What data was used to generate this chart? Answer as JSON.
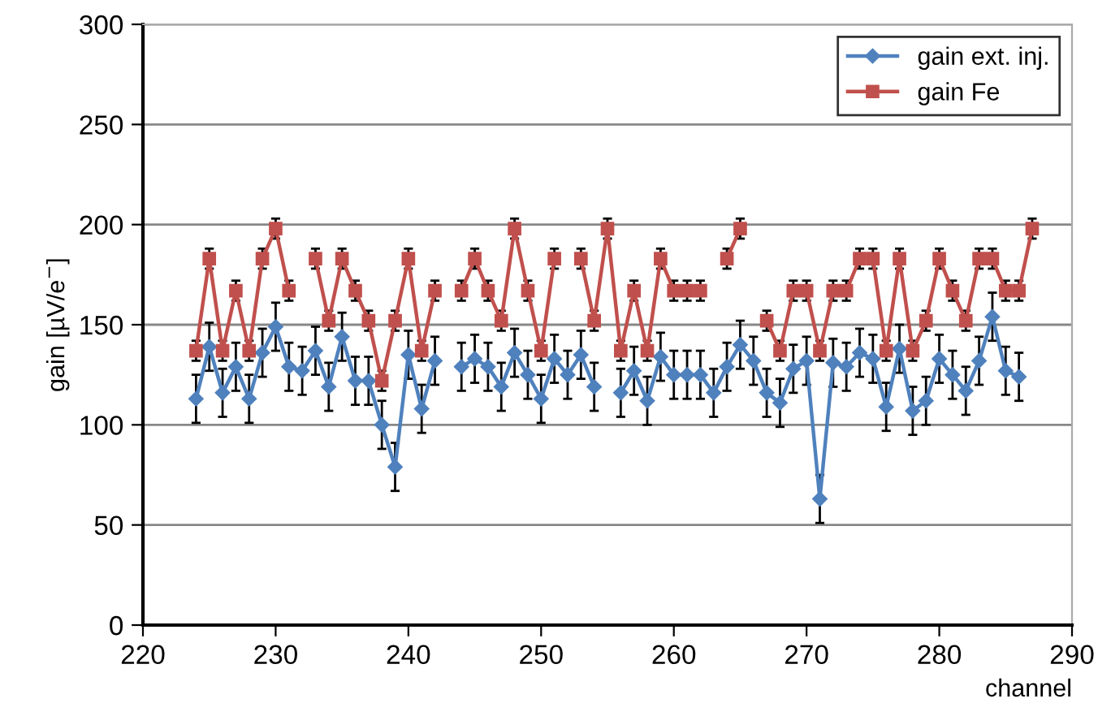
{
  "chart_data": {
    "type": "line",
    "xlabel": "channel",
    "ylabel": "gain [µV/e$^{−}$]",
    "xlim": [
      220,
      290
    ],
    "xticks": [
      220,
      230,
      240,
      250,
      260,
      270,
      280,
      290
    ],
    "ylim": [
      0,
      300
    ],
    "yticks": [
      0,
      50,
      100,
      150,
      200,
      250,
      300
    ],
    "grid": "y",
    "legend": "top right",
    "line_style": "solid",
    "x": [
      224,
      225,
      226,
      227,
      228,
      229,
      230,
      231,
      232,
      233,
      234,
      235,
      236,
      237,
      238,
      239,
      240,
      241,
      242,
      243,
      244,
      245,
      246,
      247,
      248,
      249,
      250,
      251,
      252,
      253,
      254,
      255,
      256,
      257,
      258,
      259,
      260,
      261,
      262,
      263,
      264,
      265,
      266,
      267,
      268,
      269,
      270,
      271,
      272,
      273,
      274,
      275,
      276,
      277,
      278,
      279,
      280,
      281,
      282,
      283,
      284,
      285,
      286,
      287
    ],
    "series": [
      {
        "name": "gain ext. inj.",
        "color": "#4f81bd",
        "marker": "diamond",
        "values": [
          113,
          139,
          116,
          129,
          113,
          136,
          149,
          129,
          127,
          137,
          119,
          144,
          122,
          122,
          100,
          79,
          135,
          108,
          132,
          null,
          129,
          133,
          129,
          119,
          136,
          125,
          113,
          133,
          125,
          135,
          119,
          null,
          116,
          127,
          112,
          134,
          125,
          125,
          125,
          116,
          129,
          140,
          132,
          116,
          111,
          128,
          132,
          63,
          131,
          129,
          136,
          133,
          109,
          138,
          107,
          112,
          133,
          125,
          117,
          132,
          154,
          127,
          124,
          null
        ],
        "errors": [
          12,
          12,
          12,
          12,
          12,
          12,
          12,
          12,
          12,
          12,
          12,
          12,
          12,
          12,
          12,
          12,
          12,
          12,
          12,
          null,
          12,
          12,
          12,
          12,
          12,
          12,
          12,
          12,
          12,
          12,
          12,
          null,
          12,
          12,
          12,
          12,
          12,
          12,
          12,
          12,
          12,
          12,
          12,
          12,
          12,
          12,
          12,
          12,
          12,
          12,
          12,
          12,
          12,
          12,
          12,
          12,
          12,
          12,
          12,
          12,
          12,
          12,
          12,
          null
        ]
      },
      {
        "name": "gain Fe",
        "color": "#c0504d",
        "marker": "square",
        "values": [
          137,
          183,
          137,
          167,
          137,
          183,
          198,
          167,
          null,
          183,
          152,
          183,
          167,
          152,
          122,
          152,
          183,
          137,
          167,
          null,
          167,
          183,
          167,
          152,
          198,
          167,
          137,
          183,
          null,
          183,
          152,
          198,
          137,
          167,
          137,
          183,
          167,
          167,
          167,
          null,
          183,
          198,
          null,
          152,
          137,
          167,
          167,
          137,
          167,
          167,
          183,
          183,
          137,
          183,
          137,
          152,
          183,
          167,
          152,
          183,
          183,
          167,
          167,
          198
        ],
        "errors": [
          5,
          5,
          5,
          5,
          5,
          5,
          5,
          5,
          null,
          5,
          5,
          5,
          5,
          5,
          5,
          5,
          5,
          5,
          5,
          null,
          5,
          5,
          5,
          5,
          5,
          5,
          5,
          5,
          null,
          5,
          5,
          5,
          5,
          5,
          5,
          5,
          5,
          5,
          5,
          null,
          5,
          5,
          null,
          5,
          5,
          5,
          5,
          5,
          5,
          5,
          5,
          5,
          5,
          5,
          5,
          5,
          5,
          5,
          5,
          5,
          5,
          5,
          5,
          5
        ]
      }
    ]
  }
}
